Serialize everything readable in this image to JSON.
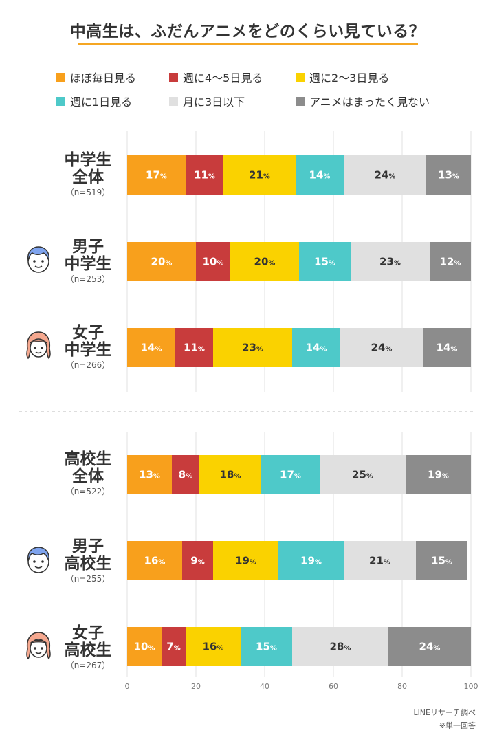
{
  "title": "中高生は、ふだんアニメをどのくらい見ている？",
  "legend": [
    {
      "label": "ほぼ毎日見る",
      "color": "#f8a01c"
    },
    {
      "label": "週に4〜5日見る",
      "color": "#c83c3c"
    },
    {
      "label": "週に2〜3日見る",
      "color": "#fad200"
    },
    {
      "label": "週に1日見る",
      "color": "#4ec9c9"
    },
    {
      "label": "月に3日以下",
      "color": "#e0e0e0"
    },
    {
      "label": "アニメはまったく見ない",
      "color": "#8c8c8c"
    }
  ],
  "groups": [
    {
      "lines": [
        "中学生",
        "全体"
      ],
      "n": "（n=519）",
      "icon": "none"
    },
    {
      "lines": [
        "男子",
        "中学生"
      ],
      "n": "（n=253）",
      "icon": "boy-face-icon"
    },
    {
      "lines": [
        "女子",
        "中学生"
      ],
      "n": "（n=266）",
      "icon": "girl-face-icon"
    },
    {
      "lines": [
        "高校生",
        "全体"
      ],
      "n": "（n=522）",
      "icon": "none"
    },
    {
      "lines": [
        "男子",
        "高校生"
      ],
      "n": "（n=255）",
      "icon": "boy-face-icon"
    },
    {
      "lines": [
        "女子",
        "高校生"
      ],
      "n": "（n=267）",
      "icon": "girl-face-icon"
    }
  ],
  "chart_data": {
    "type": "bar",
    "orientation": "horizontal",
    "stacked": true,
    "title": "中高生は、ふだんアニメをどのくらい見ている？",
    "categories": [
      "中学生全体",
      "男子中学生",
      "女子中学生",
      "高校生全体",
      "男子高校生",
      "女子高校生"
    ],
    "series": [
      {
        "name": "ほぼ毎日見る",
        "values": [
          17,
          20,
          14,
          13,
          16,
          10
        ]
      },
      {
        "name": "週に4〜5日見る",
        "values": [
          11,
          10,
          11,
          8,
          9,
          7
        ]
      },
      {
        "name": "週に2〜3日見る",
        "values": [
          21,
          20,
          23,
          18,
          19,
          16
        ]
      },
      {
        "name": "週に1日見る",
        "values": [
          14,
          15,
          14,
          17,
          19,
          15
        ]
      },
      {
        "name": "月に3日以下",
        "values": [
          24,
          23,
          24,
          25,
          21,
          28
        ]
      },
      {
        "name": "アニメはまったく見ない",
        "values": [
          13,
          12,
          14,
          19,
          15,
          24
        ]
      }
    ],
    "label_text_colors": [
      "#ffffff",
      "#ffffff",
      "#333333",
      "#ffffff",
      "#333333",
      "#ffffff"
    ],
    "value_suffix": "%",
    "xlim": [
      0,
      100
    ],
    "x_ticks": [
      0,
      20,
      40,
      60,
      80,
      100
    ],
    "grid": true,
    "legend_position": "top"
  },
  "footer": {
    "source": "LINEリサーチ調べ",
    "note": "※単一回答"
  }
}
